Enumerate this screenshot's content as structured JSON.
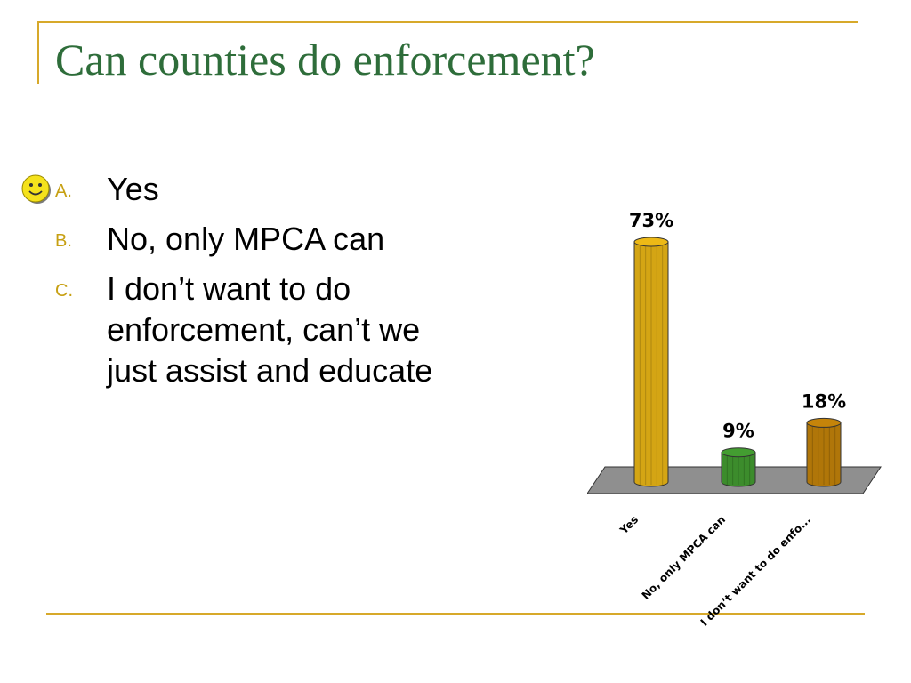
{
  "slide": {
    "title": "Can counties do enforcement?",
    "options": [
      {
        "marker": "A.",
        "text": "Yes"
      },
      {
        "marker": "B.",
        "text": "No, only MPCA can"
      },
      {
        "marker": "C.",
        "text": "I don’t want to do enforcement, can’t we just assist and educate"
      }
    ],
    "correct_icon": "smiley-face-icon"
  },
  "colors": {
    "title": "#2e6d3a",
    "rule": "#d7a92a",
    "marker": "#c7a013"
  },
  "chart_data": {
    "type": "bar",
    "categories": [
      "Yes",
      "No, only MPCA can",
      "I don’t want to do enfo..."
    ],
    "values": [
      73,
      9,
      18
    ],
    "data_labels": [
      "73%",
      "9%",
      "18%"
    ],
    "colors": [
      "#d4a514",
      "#3c8c2c",
      "#b07609"
    ],
    "ylim": [
      0,
      73
    ],
    "grid": false,
    "floor_color": "#8f8f8f"
  }
}
